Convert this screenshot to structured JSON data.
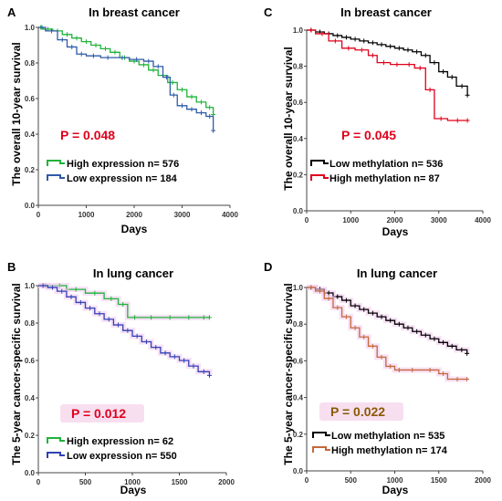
{
  "chart_data": [
    {
      "type": "line",
      "panel": "A",
      "title": "In breast cancer",
      "xlabel": "Days",
      "ylabel": "The overall 10-year survival",
      "xlim": [
        0,
        4000
      ],
      "ylim": [
        0.0,
        1.0
      ],
      "xticks": [
        "0",
        "1000",
        "2000",
        "3000",
        "4000"
      ],
      "yticks": [
        "0.0",
        "0.2",
        "0.4",
        "0.6",
        "0.8",
        "1.0"
      ],
      "p_value": "P = 0.048",
      "p_color": "#e0001b",
      "series": [
        {
          "name": "High expression n= 576",
          "color": "#1fb33a",
          "x": [
            0,
            100,
            300,
            500,
            700,
            900,
            1100,
            1300,
            1500,
            1700,
            1900,
            2100,
            2300,
            2500,
            2700,
            2900,
            3100,
            3300,
            3500,
            3650
          ],
          "y": [
            1.0,
            0.99,
            0.98,
            0.96,
            0.94,
            0.92,
            0.9,
            0.88,
            0.86,
            0.83,
            0.81,
            0.79,
            0.76,
            0.73,
            0.69,
            0.65,
            0.61,
            0.58,
            0.55,
            0.51
          ]
        },
        {
          "name": "Low expression n= 184",
          "color": "#2e5ba8",
          "x": [
            0,
            150,
            400,
            600,
            800,
            1000,
            1300,
            1600,
            1900,
            2200,
            2400,
            2600,
            2750,
            2900,
            3100,
            3300,
            3500,
            3650
          ],
          "y": [
            1.0,
            0.98,
            0.93,
            0.89,
            0.85,
            0.84,
            0.83,
            0.83,
            0.82,
            0.81,
            0.78,
            0.72,
            0.62,
            0.56,
            0.54,
            0.52,
            0.5,
            0.42
          ]
        }
      ]
    },
    {
      "type": "line",
      "panel": "C",
      "title": "In breast cancer",
      "xlabel": "Days",
      "ylabel": "The overall 10-year survival",
      "xlim": [
        0,
        4000
      ],
      "ylim": [
        0.0,
        1.0
      ],
      "xticks": [
        "0",
        "1000",
        "2000",
        "3000",
        "4000"
      ],
      "yticks": [
        "0.0",
        "0.2",
        "0.4",
        "0.6",
        "0.8",
        "1.0"
      ],
      "p_value": "P = 0.045",
      "p_color": "#e0001b",
      "series": [
        {
          "name": "Low methylation n= 536",
          "color": "#000000",
          "x": [
            0,
            200,
            400,
            600,
            800,
            1000,
            1200,
            1400,
            1600,
            1800,
            2000,
            2200,
            2400,
            2600,
            2800,
            3000,
            3200,
            3400,
            3650
          ],
          "y": [
            1.0,
            0.99,
            0.98,
            0.97,
            0.96,
            0.95,
            0.94,
            0.93,
            0.92,
            0.91,
            0.9,
            0.89,
            0.88,
            0.86,
            0.82,
            0.77,
            0.74,
            0.69,
            0.64
          ]
        },
        {
          "name": "High methylation n= 87",
          "color": "#e0001b",
          "x": [
            0,
            200,
            500,
            800,
            1100,
            1400,
            1600,
            1900,
            2200,
            2450,
            2700,
            2900,
            3200,
            3650
          ],
          "y": [
            1.0,
            0.98,
            0.94,
            0.9,
            0.89,
            0.86,
            0.82,
            0.81,
            0.81,
            0.79,
            0.67,
            0.51,
            0.5,
            0.5
          ]
        }
      ]
    },
    {
      "type": "line",
      "panel": "B",
      "title": "In lung cancer",
      "xlabel": "Days",
      "ylabel": "The 5-year cancer-specific survival",
      "xlim": [
        0,
        2000
      ],
      "ylim": [
        0.0,
        1.0
      ],
      "xticks": [
        "0",
        "500",
        "1000",
        "1500",
        "2000"
      ],
      "yticks": [
        "0.0",
        "0.2",
        "0.4",
        "0.6",
        "0.8",
        "1.0"
      ],
      "p_value": "P = 0.012",
      "p_color": "#e0001b",
      "series": [
        {
          "name": "High expression n= 62",
          "color": "#1fb33a",
          "x": [
            0,
            150,
            300,
            500,
            700,
            850,
            950,
            1100,
            1300,
            1500,
            1700,
            1820
          ],
          "y": [
            1.0,
            1.0,
            0.98,
            0.96,
            0.93,
            0.9,
            0.83,
            0.83,
            0.83,
            0.83,
            0.83,
            0.83
          ]
        },
        {
          "name": "Low expression n= 550",
          "color": "#3042b5",
          "x": [
            0,
            100,
            200,
            300,
            400,
            500,
            600,
            700,
            800,
            900,
            1000,
            1100,
            1200,
            1300,
            1400,
            1500,
            1600,
            1700,
            1820
          ],
          "y": [
            1.0,
            0.99,
            0.97,
            0.94,
            0.91,
            0.88,
            0.85,
            0.82,
            0.79,
            0.76,
            0.73,
            0.7,
            0.67,
            0.64,
            0.62,
            0.6,
            0.57,
            0.54,
            0.52
          ]
        }
      ]
    },
    {
      "type": "line",
      "panel": "D",
      "title": "In lung cancer",
      "xlabel": "Days",
      "ylabel": "The 5-year cancer-specific survival",
      "xlim": [
        0,
        2000
      ],
      "ylim": [
        0.0,
        1.0
      ],
      "xticks": [
        "0",
        "500",
        "1000",
        "1500",
        "2000"
      ],
      "yticks": [
        "0.0",
        "0.2",
        "0.4",
        "0.6",
        "0.8",
        "1.0"
      ],
      "p_value": "P = 0.022",
      "p_color": "#8b5a00",
      "series": [
        {
          "name": "Low methylation n= 535",
          "color": "#000000",
          "x": [
            0,
            100,
            200,
            300,
            400,
            500,
            600,
            700,
            800,
            900,
            1000,
            1100,
            1200,
            1300,
            1400,
            1500,
            1600,
            1700,
            1820
          ],
          "y": [
            1.0,
            0.99,
            0.97,
            0.95,
            0.93,
            0.9,
            0.88,
            0.86,
            0.84,
            0.82,
            0.8,
            0.78,
            0.76,
            0.74,
            0.72,
            0.7,
            0.68,
            0.66,
            0.64
          ]
        },
        {
          "name": "High methylation n= 174",
          "color": "#c4693a",
          "x": [
            0,
            100,
            200,
            300,
            400,
            500,
            600,
            700,
            800,
            900,
            1000,
            1100,
            1300,
            1500,
            1600,
            1820
          ],
          "y": [
            1.0,
            0.98,
            0.94,
            0.89,
            0.84,
            0.78,
            0.73,
            0.68,
            0.62,
            0.57,
            0.55,
            0.55,
            0.55,
            0.53,
            0.5,
            0.5
          ]
        }
      ]
    }
  ]
}
